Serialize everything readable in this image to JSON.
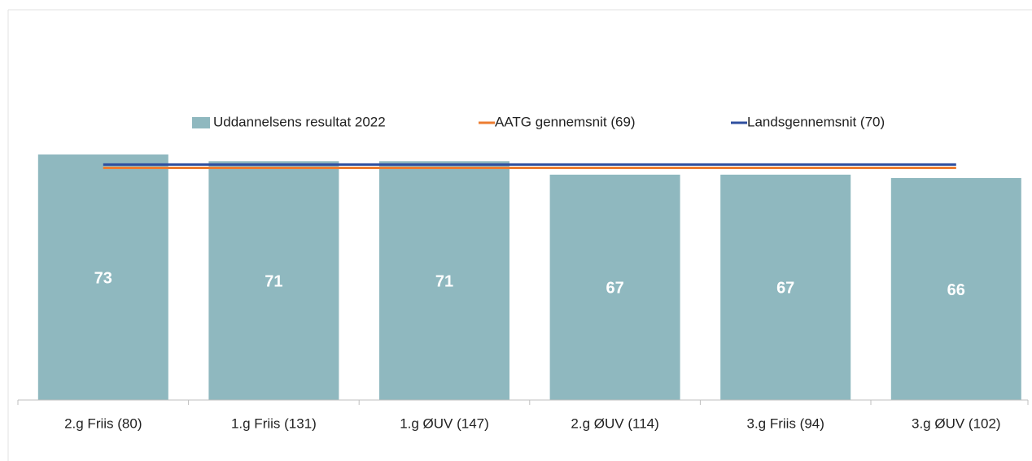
{
  "chart_data": {
    "type": "bar",
    "categories": [
      "2.g Friis (80)",
      "1.g Friis (131)",
      "1.g ØUV (147)",
      "2.g ØUV (114)",
      "3.g Friis (94)",
      "3.g ØUV (102)"
    ],
    "series": [
      {
        "name": "Uddannelsens resultat 2022",
        "type": "bar",
        "color": "#8fb8bf",
        "values": [
          73,
          71,
          71,
          67,
          67,
          66
        ]
      },
      {
        "name": "AATG gennemsnit (69)",
        "type": "line",
        "color": "#ed7d31",
        "values": [
          69,
          69,
          69,
          69,
          69,
          69
        ]
      },
      {
        "name": "Landsgennemsnit (70)",
        "type": "line",
        "color": "#2f4f9f",
        "values": [
          70,
          70,
          70,
          70,
          70,
          70
        ]
      }
    ],
    "ylim": [
      0,
      80
    ],
    "legend": "top"
  }
}
